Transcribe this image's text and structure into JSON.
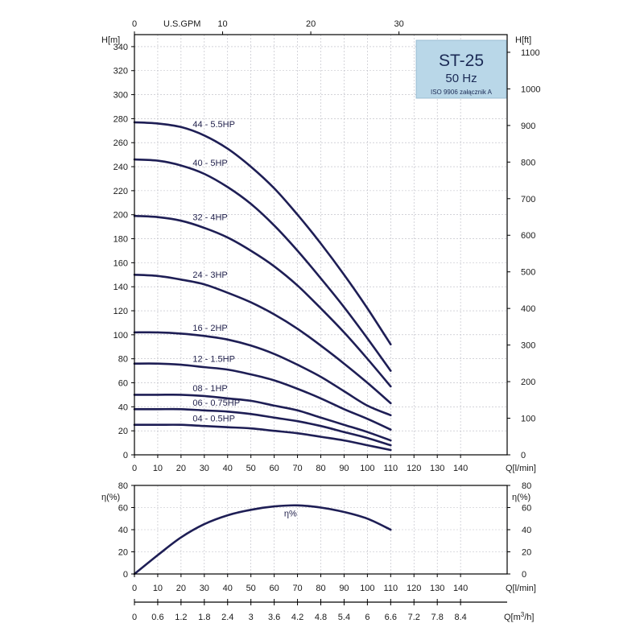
{
  "model_box": {
    "model": "ST-25",
    "frequency": "50 Hz",
    "standard": "ISO 9906 załącznik A",
    "fill_color": "#b9d7e8"
  },
  "chart_data": [
    {
      "type": "line",
      "title": "",
      "xlabel": "Q[l/min]",
      "ylabel": "H[m]",
      "ylabel_right": "H[ft]",
      "xlabel_top": "U.S.GPM",
      "xlim": [
        0,
        160
      ],
      "ylim": [
        0,
        350
      ],
      "x_ticks": [
        0,
        10,
        20,
        30,
        40,
        50,
        60,
        70,
        80,
        90,
        100,
        110,
        120,
        130,
        140
      ],
      "y_ticks": [
        0,
        20,
        40,
        60,
        80,
        100,
        120,
        140,
        160,
        180,
        200,
        220,
        240,
        260,
        280,
        300,
        320,
        340
      ],
      "y_right_ticks": [
        0,
        100,
        200,
        300,
        400,
        500,
        600,
        700,
        800,
        900,
        1000,
        1100
      ],
      "x_top_ticks": [
        0,
        10,
        20,
        30
      ],
      "grid": true,
      "curve_color": "#1e1e55",
      "series": [
        {
          "name": "44 - 5.5HP",
          "x": [
            0,
            10,
            20,
            30,
            40,
            50,
            60,
            70,
            80,
            90,
            100,
            110
          ],
          "values": [
            277,
            276,
            273,
            266,
            255,
            240,
            222,
            200,
            176,
            150,
            122,
            92
          ]
        },
        {
          "name": "40 - 5HP",
          "x": [
            0,
            10,
            20,
            30,
            40,
            50,
            60,
            70,
            80,
            90,
            100,
            110
          ],
          "values": [
            246,
            245,
            241,
            234,
            223,
            209,
            191,
            170,
            147,
            123,
            97,
            70
          ]
        },
        {
          "name": "32 - 4HP",
          "x": [
            0,
            10,
            20,
            30,
            40,
            50,
            60,
            70,
            80,
            90,
            100,
            110
          ],
          "values": [
            199,
            198,
            195,
            189,
            181,
            170,
            157,
            141,
            122,
            102,
            80,
            57
          ]
        },
        {
          "name": "24 - 3HP",
          "x": [
            0,
            10,
            20,
            30,
            40,
            50,
            60,
            70,
            80,
            90,
            100,
            110
          ],
          "values": [
            150,
            149,
            146,
            142,
            135,
            127,
            117,
            105,
            91,
            76,
            60,
            43
          ]
        },
        {
          "name": "16 - 2HP",
          "x": [
            0,
            10,
            20,
            30,
            40,
            50,
            60,
            70,
            80,
            90,
            100,
            110
          ],
          "values": [
            102,
            102,
            101,
            99,
            96,
            91,
            84,
            75,
            65,
            53,
            41,
            33
          ]
        },
        {
          "name": "12 - 1.5HP",
          "x": [
            0,
            10,
            20,
            30,
            40,
            50,
            60,
            70,
            80,
            90,
            100,
            110
          ],
          "values": [
            76,
            76,
            75,
            73,
            71,
            67,
            62,
            55,
            47,
            38,
            30,
            21
          ]
        },
        {
          "name": "08 - 1HP",
          "x": [
            0,
            10,
            20,
            30,
            40,
            50,
            60,
            70,
            80,
            90,
            100,
            110
          ],
          "values": [
            50,
            50,
            50,
            49,
            47,
            45,
            41,
            37,
            31,
            25,
            19,
            12
          ]
        },
        {
          "name": "06 - 0.75HP",
          "x": [
            0,
            10,
            20,
            30,
            40,
            50,
            60,
            70,
            80,
            90,
            100,
            110
          ],
          "values": [
            38,
            38,
            38,
            37,
            36,
            34,
            31,
            28,
            24,
            19,
            14,
            8
          ]
        },
        {
          "name": "04 - 0.5HP",
          "x": [
            0,
            10,
            20,
            30,
            40,
            50,
            60,
            70,
            80,
            90,
            100,
            110
          ],
          "values": [
            25,
            25,
            25,
            24,
            23,
            22,
            20,
            18,
            15,
            12,
            8,
            4
          ]
        }
      ]
    },
    {
      "type": "line",
      "title": "",
      "xlabel": "Q[l/min]",
      "ylabel": "η(%)",
      "ylabel_right": "η(%)",
      "xlabel_bottom": "Q[m3/h]",
      "xlim": [
        0,
        160
      ],
      "ylim": [
        0,
        80
      ],
      "x_ticks": [
        0,
        10,
        20,
        30,
        40,
        50,
        60,
        70,
        80,
        90,
        100,
        110,
        120,
        130,
        140
      ],
      "y_ticks": [
        0,
        20,
        40,
        60,
        80
      ],
      "m3h_ticks": [
        "0",
        "0.6",
        "1.2",
        "1.8",
        "2.4",
        "3",
        "3.6",
        "4.2",
        "4.8",
        "5.4",
        "6",
        "6.6",
        "7.2",
        "7.8",
        "8.4"
      ],
      "grid": true,
      "series": [
        {
          "name": "η%",
          "x": [
            0,
            10,
            20,
            30,
            40,
            50,
            60,
            70,
            80,
            90,
            100,
            110
          ],
          "values": [
            0,
            17,
            33,
            45,
            53,
            58,
            61,
            62,
            60,
            56,
            50,
            40
          ]
        }
      ]
    }
  ]
}
